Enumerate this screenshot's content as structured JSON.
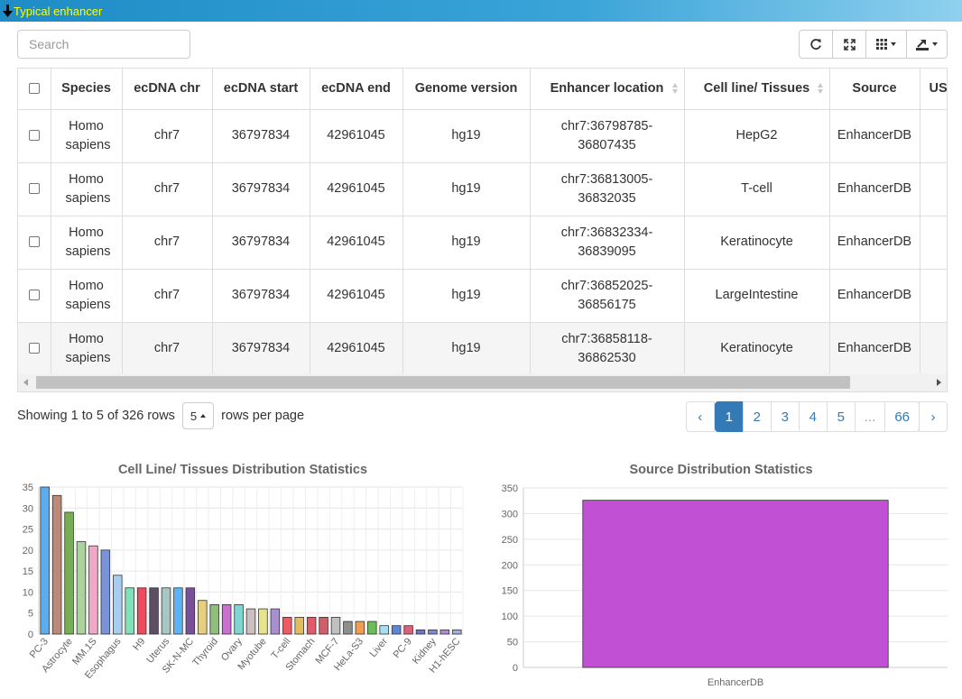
{
  "panel": {
    "title": "Typical enhancer"
  },
  "search": {
    "placeholder": "Search"
  },
  "table": {
    "columns": [
      "Species",
      "ecDNA chr",
      "ecDNA start",
      "ecDNA end",
      "Genome version",
      "Enhancer location",
      "Cell line/ Tissues",
      "Source",
      "US"
    ],
    "rows": [
      [
        "Homo sapiens",
        "chr7",
        "36797834",
        "42961045",
        "hg19",
        "chr7:36798785-36807435",
        "HepG2",
        "EnhancerDB",
        ""
      ],
      [
        "Homo sapiens",
        "chr7",
        "36797834",
        "42961045",
        "hg19",
        "chr7:36813005-36832035",
        "T-cell",
        "EnhancerDB",
        ""
      ],
      [
        "Homo sapiens",
        "chr7",
        "36797834",
        "42961045",
        "hg19",
        "chr7:36832334-36839095",
        "Keratinocyte",
        "EnhancerDB",
        ""
      ],
      [
        "Homo sapiens",
        "chr7",
        "36797834",
        "42961045",
        "hg19",
        "chr7:36852025-36856175",
        "LargeIntestine",
        "EnhancerDB",
        ""
      ],
      [
        "Homo sapiens",
        "chr7",
        "36797834",
        "42961045",
        "hg19",
        "chr7:36858118-36862530",
        "Keratinocyte",
        "EnhancerDB",
        ""
      ]
    ]
  },
  "pagination": {
    "showing": "Showing 1 to 5 of 326 rows",
    "page_size": "5",
    "rows_per_page": "rows per page",
    "prev": "‹",
    "next": "›",
    "pages": [
      "1",
      "2",
      "3",
      "4",
      "5",
      "...",
      "66"
    ],
    "active": "1"
  },
  "chart_data": [
    {
      "type": "bar",
      "title": "Cell Line/ Tissues Distribution Statistics",
      "ylim": [
        0,
        35
      ],
      "yticks": [
        0,
        5,
        10,
        15,
        20,
        25,
        30,
        35
      ],
      "categories": [
        "PC-3",
        "",
        "Astrocyte",
        "",
        "MM.1S",
        "",
        "Esophagus",
        "",
        "H9",
        "",
        "Uterus",
        "",
        "SK-N-MC",
        "",
        "Thyroid",
        "",
        "Ovary",
        "",
        "Myotube",
        "",
        "T-cell",
        "",
        "Stomach",
        "",
        "MCF-7",
        "",
        "HeLa-S3",
        "",
        "Liver",
        "",
        "PC-9",
        "",
        "Kidney",
        "",
        "H1-hESC"
      ],
      "values": [
        35,
        33,
        29,
        22,
        21,
        20,
        14,
        11,
        11,
        11,
        11,
        11,
        11,
        8,
        7,
        7,
        7,
        6,
        6,
        6,
        4,
        4,
        4,
        4,
        4,
        3,
        3,
        3,
        2,
        2,
        2,
        1,
        1,
        1,
        1
      ],
      "colors": [
        "#5aaef0",
        "#bd8a7a",
        "#76ad55",
        "#abd39b",
        "#f3a7c8",
        "#7a92d8",
        "#a9cdee",
        "#7fe3b8",
        "#ef4a5d",
        "#5c4f63",
        "#a8c6c4",
        "#5ab3f4",
        "#7a4f9a",
        "#e6cf7e",
        "#8fbf78",
        "#cb6fd2",
        "#7ed5d2",
        "#cdbfbf",
        "#e8e588",
        "#a88fcf",
        "#ef5b62",
        "#e0bd5d",
        "#e55a6b",
        "#cf5f6a",
        "#c0c0c0",
        "#8d8d8d",
        "#ef9d52",
        "#6abd5a",
        "#a5e0f0",
        "#5d86d9",
        "#d9607a",
        "#6f73c9",
        "#7c8ad1",
        "#b08bd6",
        "#a4b0d8"
      ]
    },
    {
      "type": "bar",
      "title": "Source Distribution Statistics",
      "ylim": [
        0,
        350
      ],
      "yticks": [
        0,
        50,
        100,
        150,
        200,
        250,
        300,
        350
      ],
      "categories": [
        "EnhancerDB"
      ],
      "values": [
        326
      ],
      "colors": [
        "#c150d4"
      ]
    }
  ]
}
